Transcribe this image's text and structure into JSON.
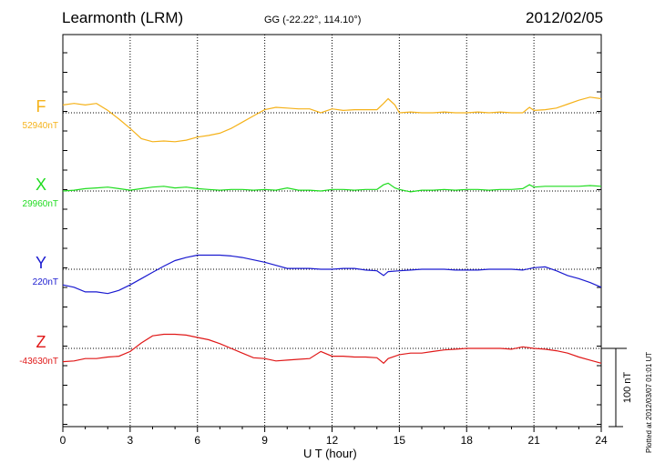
{
  "header": {
    "station": "Learmonth (LRM)",
    "coords": "GG (-22.22°, 114.10°)",
    "date": "2012/02/05"
  },
  "footer": {
    "stamp": "Plotted at 2012/03/07 01:01  UT"
  },
  "scale_bar": {
    "label": "100 nT",
    "value_nT": 100
  },
  "colors": {
    "F": "#f5b21a",
    "X": "#1fdc1f",
    "Y": "#1a1ad0",
    "Z": "#e01818",
    "grid": "#000000"
  },
  "chart_data": {
    "type": "line",
    "xlabel": "U T (hour)",
    "xlim": [
      0,
      24
    ],
    "xticks": [
      "0",
      "3",
      "6",
      "9",
      "12",
      "15",
      "18",
      "21",
      "24"
    ],
    "grid": "dotted",
    "series": [
      {
        "name": "F",
        "baseline_label": "52940nT",
        "baseline_nT": 52940,
        "points": [
          [
            0,
            52950
          ],
          [
            0.5,
            52952
          ],
          [
            1,
            52950
          ],
          [
            1.5,
            52952
          ],
          [
            2,
            52943
          ],
          [
            2.5,
            52932
          ],
          [
            3,
            52920
          ],
          [
            3.5,
            52907
          ],
          [
            4,
            52903
          ],
          [
            4.5,
            52904
          ],
          [
            5,
            52903
          ],
          [
            5.5,
            52905
          ],
          [
            6,
            52909
          ],
          [
            6.5,
            52911
          ],
          [
            7,
            52914
          ],
          [
            7.5,
            52920
          ],
          [
            8,
            52928
          ],
          [
            8.5,
            52936
          ],
          [
            9,
            52944
          ],
          [
            9.5,
            52947
          ],
          [
            10,
            52946
          ],
          [
            10.5,
            52945
          ],
          [
            11,
            52945
          ],
          [
            11.5,
            52940
          ],
          [
            12,
            52945
          ],
          [
            12.5,
            52943
          ],
          [
            13,
            52944
          ],
          [
            13.5,
            52944
          ],
          [
            14,
            52944
          ],
          [
            14.3,
            52952
          ],
          [
            14.5,
            52958
          ],
          [
            14.8,
            52950
          ],
          [
            15,
            52940
          ],
          [
            15.5,
            52941
          ],
          [
            16,
            52940
          ],
          [
            16.5,
            52940
          ],
          [
            17,
            52941
          ],
          [
            17.5,
            52940
          ],
          [
            18,
            52940
          ],
          [
            18.5,
            52941
          ],
          [
            19,
            52940
          ],
          [
            19.5,
            52941
          ],
          [
            20,
            52940
          ],
          [
            20.5,
            52940
          ],
          [
            20.8,
            52947
          ],
          [
            21,
            52943
          ],
          [
            21.5,
            52944
          ],
          [
            22,
            52946
          ],
          [
            22.5,
            52951
          ],
          [
            23,
            52956
          ],
          [
            23.5,
            52960
          ],
          [
            24,
            52958
          ]
        ]
      },
      {
        "name": "X",
        "baseline_label": "29960nT",
        "baseline_nT": 29960,
        "points": [
          [
            0,
            29960
          ],
          [
            0.5,
            29961
          ],
          [
            1,
            29963
          ],
          [
            1.5,
            29964
          ],
          [
            2,
            29965
          ],
          [
            2.5,
            29963
          ],
          [
            3,
            29961
          ],
          [
            3.5,
            29963
          ],
          [
            4,
            29965
          ],
          [
            4.5,
            29966
          ],
          [
            5,
            29964
          ],
          [
            5.5,
            29965
          ],
          [
            6,
            29963
          ],
          [
            6.5,
            29962
          ],
          [
            7,
            29961
          ],
          [
            7.5,
            29962
          ],
          [
            8,
            29962
          ],
          [
            8.5,
            29961
          ],
          [
            9,
            29962
          ],
          [
            9.5,
            29961
          ],
          [
            10,
            29964
          ],
          [
            10.5,
            29961
          ],
          [
            11,
            29961
          ],
          [
            11.5,
            29960
          ],
          [
            12,
            29962
          ],
          [
            12.5,
            29962
          ],
          [
            13,
            29961
          ],
          [
            13.5,
            29962
          ],
          [
            14,
            29962
          ],
          [
            14.3,
            29968
          ],
          [
            14.5,
            29970
          ],
          [
            14.8,
            29964
          ],
          [
            15,
            29962
          ],
          [
            15.5,
            29959
          ],
          [
            16,
            29961
          ],
          [
            16.5,
            29961
          ],
          [
            17,
            29962
          ],
          [
            17.5,
            29961
          ],
          [
            18,
            29962
          ],
          [
            18.5,
            29962
          ],
          [
            19,
            29961
          ],
          [
            19.5,
            29962
          ],
          [
            20,
            29962
          ],
          [
            20.5,
            29963
          ],
          [
            20.8,
            29968
          ],
          [
            21,
            29965
          ],
          [
            21.5,
            29966
          ],
          [
            22,
            29966
          ],
          [
            22.5,
            29966
          ],
          [
            23,
            29966
          ],
          [
            23.5,
            29967
          ],
          [
            24,
            29966
          ]
        ]
      },
      {
        "name": "Y",
        "baseline_label": "220nT",
        "baseline_nT": 220,
        "points": [
          [
            0,
            200
          ],
          [
            0.5,
            197
          ],
          [
            1,
            191
          ],
          [
            1.5,
            191
          ],
          [
            2,
            189
          ],
          [
            2.5,
            193
          ],
          [
            3,
            200
          ],
          [
            3.5,
            208
          ],
          [
            4,
            216
          ],
          [
            4.5,
            224
          ],
          [
            5,
            231
          ],
          [
            5.5,
            235
          ],
          [
            6,
            238
          ],
          [
            6.5,
            238
          ],
          [
            7,
            238
          ],
          [
            7.5,
            237
          ],
          [
            8,
            235
          ],
          [
            8.5,
            232
          ],
          [
            9,
            229
          ],
          [
            9.5,
            225
          ],
          [
            10,
            221
          ],
          [
            10.5,
            221
          ],
          [
            11,
            221
          ],
          [
            11.5,
            220
          ],
          [
            12,
            220
          ],
          [
            12.5,
            221
          ],
          [
            13,
            221
          ],
          [
            13.5,
            219
          ],
          [
            14,
            218
          ],
          [
            14.3,
            212
          ],
          [
            14.5,
            217
          ],
          [
            15,
            218
          ],
          [
            15.5,
            219
          ],
          [
            16,
            220
          ],
          [
            16.5,
            220
          ],
          [
            17,
            220
          ],
          [
            17.5,
            219
          ],
          [
            18,
            219
          ],
          [
            18.5,
            219
          ],
          [
            19,
            220
          ],
          [
            19.5,
            220
          ],
          [
            20,
            220
          ],
          [
            20.5,
            219
          ],
          [
            21,
            222
          ],
          [
            21.5,
            223
          ],
          [
            22,
            218
          ],
          [
            22.5,
            212
          ],
          [
            23,
            208
          ],
          [
            23.5,
            203
          ],
          [
            24,
            197
          ]
        ]
      },
      {
        "name": "Z",
        "baseline_label": "-43630nT",
        "baseline_nT": -43630,
        "points": [
          [
            0,
            -43647
          ],
          [
            0.5,
            -43646
          ],
          [
            1,
            -43643
          ],
          [
            1.5,
            -43643
          ],
          [
            2,
            -43641
          ],
          [
            2.5,
            -43640
          ],
          [
            3,
            -43634
          ],
          [
            3.5,
            -43623
          ],
          [
            4,
            -43614
          ],
          [
            4.5,
            -43612
          ],
          [
            5,
            -43612
          ],
          [
            5.5,
            -43613
          ],
          [
            6,
            -43616
          ],
          [
            6.5,
            -43619
          ],
          [
            7,
            -43624
          ],
          [
            7.5,
            -43630
          ],
          [
            8,
            -43636
          ],
          [
            8.5,
            -43642
          ],
          [
            9,
            -43643
          ],
          [
            9.5,
            -43646
          ],
          [
            10,
            -43645
          ],
          [
            10.5,
            -43644
          ],
          [
            11,
            -43643
          ],
          [
            11.5,
            -43634
          ],
          [
            12,
            -43640
          ],
          [
            12.5,
            -43640
          ],
          [
            13,
            -43641
          ],
          [
            13.5,
            -43641
          ],
          [
            14,
            -43642
          ],
          [
            14.3,
            -43649
          ],
          [
            14.5,
            -43643
          ],
          [
            15,
            -43638
          ],
          [
            15.5,
            -43636
          ],
          [
            16,
            -43636
          ],
          [
            16.5,
            -43634
          ],
          [
            17,
            -43632
          ],
          [
            17.5,
            -43631
          ],
          [
            18,
            -43630
          ],
          [
            18.5,
            -43630
          ],
          [
            19,
            -43630
          ],
          [
            19.5,
            -43630
          ],
          [
            20,
            -43631
          ],
          [
            20.5,
            -43628
          ],
          [
            21,
            -43630
          ],
          [
            21.5,
            -43631
          ],
          [
            22,
            -43633
          ],
          [
            22.5,
            -43636
          ],
          [
            23,
            -43641
          ],
          [
            23.5,
            -43645
          ],
          [
            24,
            -43649
          ]
        ]
      }
    ]
  }
}
